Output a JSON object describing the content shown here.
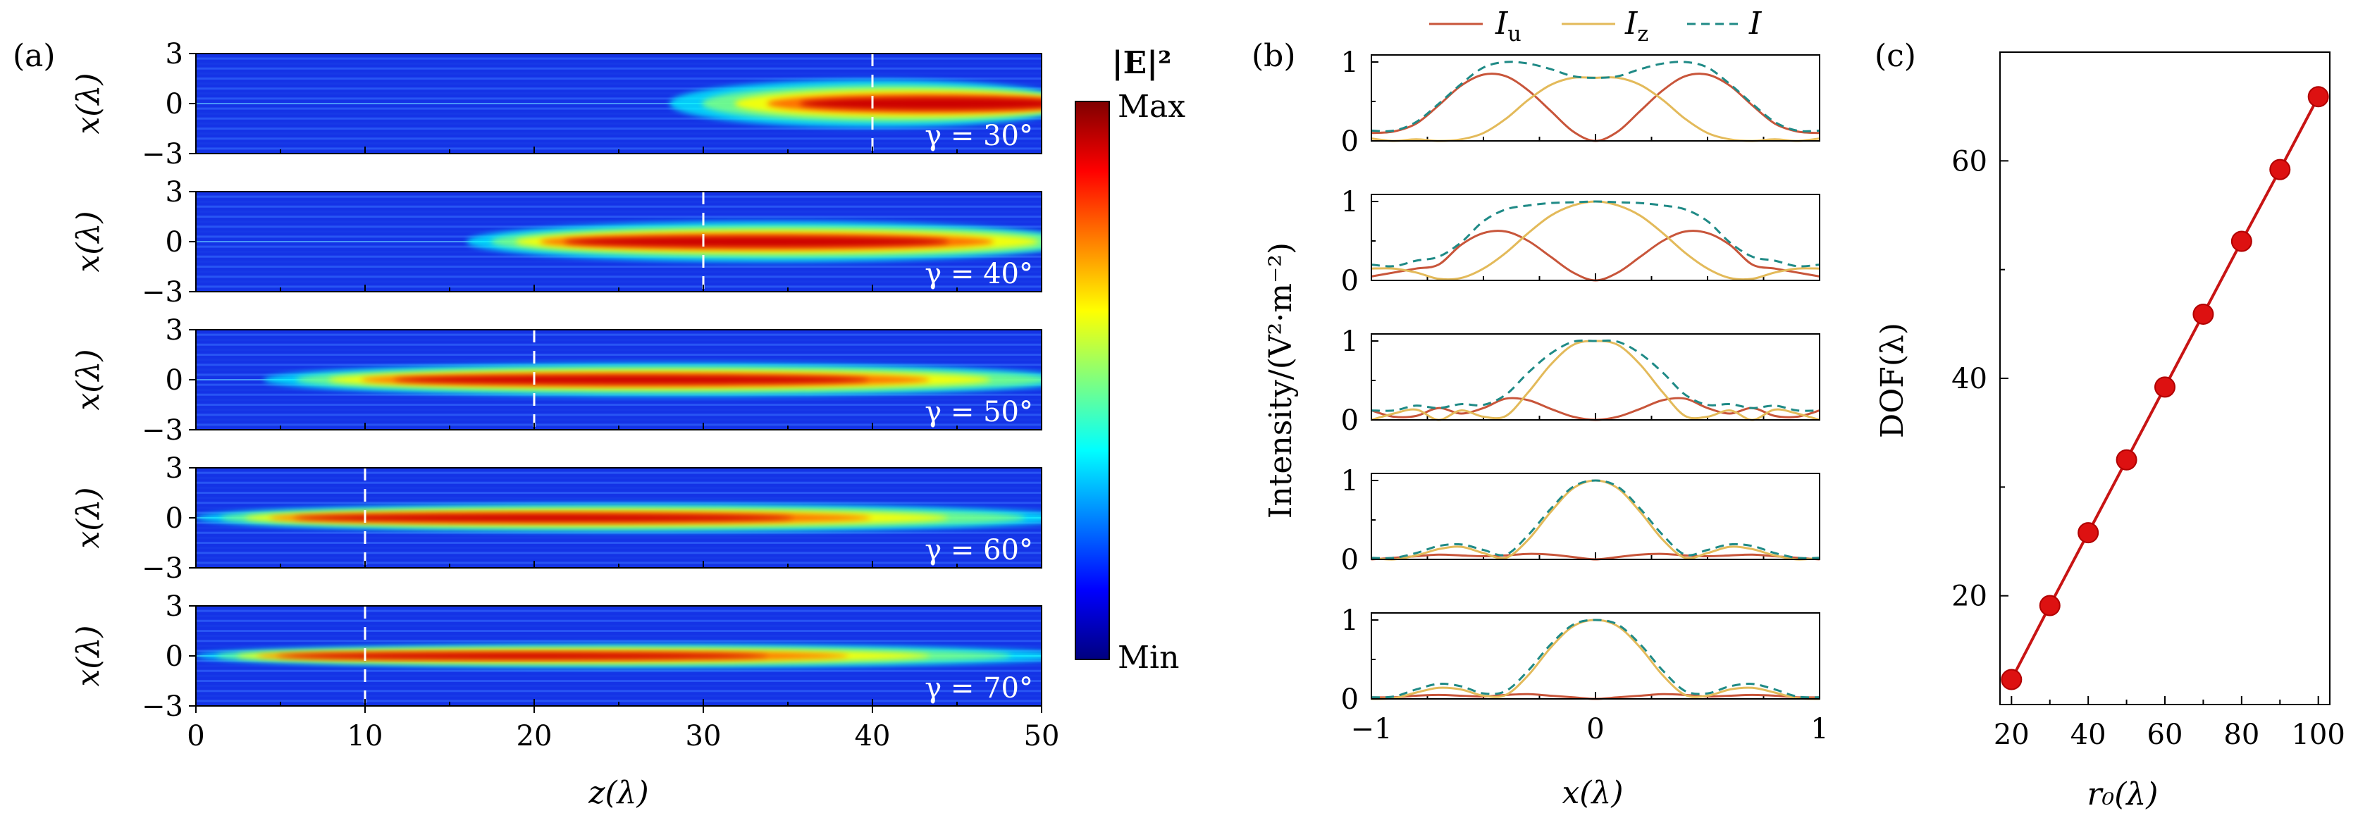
{
  "panel_labels": {
    "a": "(a)",
    "b": "(b)",
    "c": "(c)"
  },
  "colorbar": {
    "title": "|E|²",
    "max_label": "Max",
    "min_label": "Min"
  },
  "legend": {
    "Iu": "I",
    "Iu_sub": "u",
    "Iz": "I",
    "Iz_sub": "z",
    "I": "I"
  },
  "colors": {
    "Iu": "#c8553a",
    "Iz": "#e3ba5a",
    "I": "#1f8a86",
    "dof": "#c81414",
    "dof_marker": "#dd1111"
  },
  "chart_data": [
    {
      "id": "a",
      "type": "heatmap",
      "xlabel": "z(λ)",
      "ylabel": "x(λ)",
      "xlim": [
        0,
        50
      ],
      "ylim": [
        -3,
        3
      ],
      "xticks": [
        "0",
        "10",
        "20",
        "30",
        "40",
        "50"
      ],
      "yticks": [
        "3",
        "0",
        "−3"
      ],
      "rows": [
        {
          "gamma": "γ = 30°",
          "dashed_z": 40,
          "focus_start": 28,
          "focus_peak": 44,
          "spread": 1.0
        },
        {
          "gamma": "γ = 40°",
          "dashed_z": 30,
          "focus_start": 16,
          "focus_peak": 28,
          "spread": 0.85
        },
        {
          "gamma": "γ = 50°",
          "dashed_z": 20,
          "focus_start": 4,
          "focus_peak": 20,
          "spread": 0.7
        },
        {
          "gamma": "γ = 60°",
          "dashed_z": 10,
          "focus_start": 0,
          "focus_peak": 12,
          "spread": 0.6
        },
        {
          "gamma": "γ = 70°",
          "dashed_z": 10,
          "focus_start": 0,
          "focus_peak": 10,
          "spread": 0.5
        }
      ]
    },
    {
      "id": "b",
      "type": "line",
      "xlabel": "x(λ)",
      "ylabel": "Intensity/(V²·m⁻²)",
      "xlim": [
        -1,
        1
      ],
      "ylim": [
        0,
        1
      ],
      "xticks": [
        "−1",
        "0",
        "1"
      ],
      "yticks": [
        "1",
        "0"
      ],
      "x": [
        -1.0,
        -0.9,
        -0.8,
        -0.7,
        -0.6,
        -0.5,
        -0.4,
        -0.3,
        -0.2,
        -0.1,
        0.0,
        0.1,
        0.2,
        0.3,
        0.4,
        0.5,
        0.6,
        0.7,
        0.8,
        0.9,
        1.0
      ],
      "subplots": [
        {
          "series": [
            {
              "key": "Iu",
              "values": [
                0.1,
                0.12,
                0.22,
                0.45,
                0.7,
                0.84,
                0.82,
                0.64,
                0.38,
                0.12,
                0.0,
                0.12,
                0.38,
                0.64,
                0.82,
                0.84,
                0.7,
                0.45,
                0.22,
                0.12,
                0.1
              ]
            },
            {
              "key": "Iz",
              "values": [
                0.03,
                0.0,
                0.02,
                0.0,
                0.02,
                0.1,
                0.28,
                0.52,
                0.71,
                0.8,
                0.8,
                0.8,
                0.71,
                0.52,
                0.28,
                0.1,
                0.02,
                0.0,
                0.02,
                0.0,
                0.03
              ]
            },
            {
              "key": "I",
              "values": [
                0.13,
                0.13,
                0.24,
                0.47,
                0.72,
                0.93,
                1.0,
                0.98,
                0.91,
                0.82,
                0.8,
                0.82,
                0.91,
                0.98,
                1.0,
                0.93,
                0.72,
                0.47,
                0.24,
                0.13,
                0.13
              ]
            }
          ]
        },
        {
          "series": [
            {
              "key": "Iu",
              "values": [
                0.05,
                0.1,
                0.15,
                0.2,
                0.45,
                0.6,
                0.62,
                0.5,
                0.3,
                0.1,
                0.0,
                0.1,
                0.3,
                0.5,
                0.62,
                0.6,
                0.45,
                0.2,
                0.15,
                0.1,
                0.05
              ]
            },
            {
              "key": "Iz",
              "values": [
                0.15,
                0.15,
                0.1,
                0.02,
                0.03,
                0.15,
                0.35,
                0.6,
                0.82,
                0.95,
                1.0,
                0.95,
                0.82,
                0.6,
                0.35,
                0.15,
                0.03,
                0.02,
                0.1,
                0.15,
                0.15
              ]
            },
            {
              "key": "I",
              "values": [
                0.2,
                0.18,
                0.25,
                0.3,
                0.48,
                0.75,
                0.9,
                0.95,
                0.98,
                0.99,
                1.0,
                0.99,
                0.98,
                0.95,
                0.9,
                0.75,
                0.48,
                0.3,
                0.25,
                0.18,
                0.2
              ]
            }
          ]
        },
        {
          "series": [
            {
              "key": "Iu",
              "values": [
                0.12,
                0.04,
                0.05,
                0.15,
                0.08,
                0.15,
                0.27,
                0.25,
                0.14,
                0.04,
                0.0,
                0.04,
                0.14,
                0.25,
                0.27,
                0.15,
                0.08,
                0.15,
                0.05,
                0.04,
                0.12
              ]
            },
            {
              "key": "Iz",
              "values": [
                0.0,
                0.08,
                0.13,
                0.0,
                0.12,
                0.04,
                0.05,
                0.35,
                0.7,
                0.95,
                1.0,
                0.95,
                0.7,
                0.35,
                0.05,
                0.04,
                0.12,
                0.0,
                0.13,
                0.08,
                0.0
              ]
            },
            {
              "key": "I",
              "values": [
                0.12,
                0.12,
                0.18,
                0.15,
                0.2,
                0.19,
                0.32,
                0.6,
                0.84,
                0.99,
                1.0,
                0.99,
                0.84,
                0.6,
                0.32,
                0.19,
                0.2,
                0.15,
                0.18,
                0.12,
                0.12
              ]
            }
          ]
        },
        {
          "series": [
            {
              "key": "Iu",
              "values": [
                0.0,
                0.02,
                0.04,
                0.06,
                0.05,
                0.04,
                0.05,
                0.07,
                0.06,
                0.03,
                0.0,
                0.03,
                0.06,
                0.07,
                0.05,
                0.04,
                0.05,
                0.06,
                0.04,
                0.02,
                0.0
              ]
            },
            {
              "key": "Iz",
              "values": [
                0.02,
                0.0,
                0.05,
                0.13,
                0.16,
                0.08,
                0.02,
                0.25,
                0.6,
                0.9,
                1.0,
                0.9,
                0.6,
                0.25,
                0.02,
                0.08,
                0.16,
                0.13,
                0.05,
                0.0,
                0.02
              ]
            },
            {
              "key": "I",
              "values": [
                0.02,
                0.02,
                0.08,
                0.17,
                0.19,
                0.12,
                0.06,
                0.31,
                0.64,
                0.92,
                1.0,
                0.92,
                0.64,
                0.31,
                0.06,
                0.12,
                0.19,
                0.17,
                0.08,
                0.02,
                0.02
              ]
            }
          ]
        },
        {
          "series": [
            {
              "key": "Iu",
              "values": [
                0.02,
                0.02,
                0.04,
                0.05,
                0.04,
                0.03,
                0.05,
                0.06,
                0.04,
                0.02,
                0.0,
                0.02,
                0.04,
                0.06,
                0.05,
                0.03,
                0.04,
                0.05,
                0.04,
                0.02,
                0.02
              ]
            },
            {
              "key": "Iz",
              "values": [
                0.0,
                0.01,
                0.08,
                0.14,
                0.12,
                0.04,
                0.05,
                0.3,
                0.65,
                0.92,
                1.0,
                0.92,
                0.65,
                0.3,
                0.05,
                0.04,
                0.12,
                0.14,
                0.08,
                0.01,
                0.0
              ]
            },
            {
              "key": "I",
              "values": [
                0.02,
                0.03,
                0.12,
                0.19,
                0.16,
                0.07,
                0.1,
                0.36,
                0.69,
                0.94,
                1.0,
                0.94,
                0.69,
                0.36,
                0.1,
                0.07,
                0.16,
                0.19,
                0.12,
                0.03,
                0.02
              ]
            }
          ]
        }
      ]
    },
    {
      "id": "c",
      "type": "line",
      "xlabel": "r₀(λ)",
      "ylabel": "DOF(λ)",
      "xlim": [
        17,
        103
      ],
      "ylim": [
        10,
        70
      ],
      "xticks": [
        20,
        40,
        60,
        80,
        100
      ],
      "yticks": [
        20,
        40,
        60
      ],
      "x": [
        20,
        30,
        40,
        50,
        60,
        70,
        80,
        90,
        100
      ],
      "y": [
        12.3,
        19.1,
        25.8,
        32.5,
        39.2,
        45.9,
        52.6,
        59.2,
        65.9
      ]
    }
  ]
}
